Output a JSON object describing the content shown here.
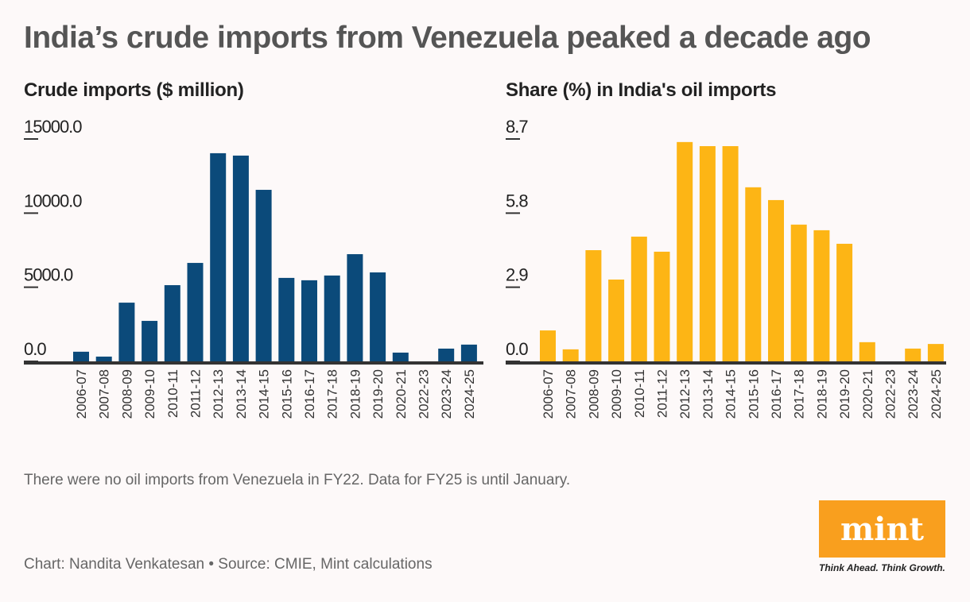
{
  "title": "India’s crude imports from Venezuela peaked a decade ago",
  "note": "There were no oil imports from Venezuela in FY22. Data for FY25 is until January.",
  "credit": "Chart: Nandita Venkatesan • Source: CMIE, Mint calculations",
  "logo": {
    "text": "mint",
    "tagline": "Think Ahead. Think Growth."
  },
  "chart_data": [
    {
      "type": "bar",
      "title": "Crude imports ($ million)",
      "color": "#0b4a7a",
      "categories": [
        "2006-07",
        "2007-08",
        "2008-09",
        "2009-10",
        "2010-11",
        "2011-12",
        "2012-13",
        "2013-14",
        "2014-15",
        "2015-16",
        "2016-17",
        "2017-18",
        "2018-19",
        "2019-20",
        "2020-21",
        "2022-23",
        "2023-24",
        "2024-25"
      ],
      "values": [
        650,
        320,
        3960,
        2730,
        5140,
        6640,
        14040,
        13880,
        11570,
        5630,
        5470,
        5790,
        7230,
        6000,
        590,
        0,
        860,
        1130
      ],
      "yticks": [
        "0.0",
        "5000.0",
        "10000.0",
        "15000.0"
      ],
      "ylim": [
        0,
        15000
      ]
    },
    {
      "type": "bar",
      "title": "Share (%) in India's oil imports",
      "color": "#fdb515",
      "categories": [
        "2006-07",
        "2007-08",
        "2008-09",
        "2009-10",
        "2010-11",
        "2011-12",
        "2012-13",
        "2013-14",
        "2014-15",
        "2015-16",
        "2016-17",
        "2017-18",
        "2018-19",
        "2019-20",
        "2020-21",
        "2022-23",
        "2023-24",
        "2024-25"
      ],
      "values": [
        1.21,
        0.47,
        4.35,
        3.2,
        4.88,
        4.29,
        8.58,
        8.42,
        8.42,
        6.81,
        6.31,
        5.35,
        5.13,
        4.6,
        0.75,
        0,
        0.5,
        0.68
      ],
      "yticks": [
        "0.0",
        "2.9",
        "5.8",
        "8.7"
      ],
      "ylim": [
        0,
        8.7
      ]
    }
  ]
}
